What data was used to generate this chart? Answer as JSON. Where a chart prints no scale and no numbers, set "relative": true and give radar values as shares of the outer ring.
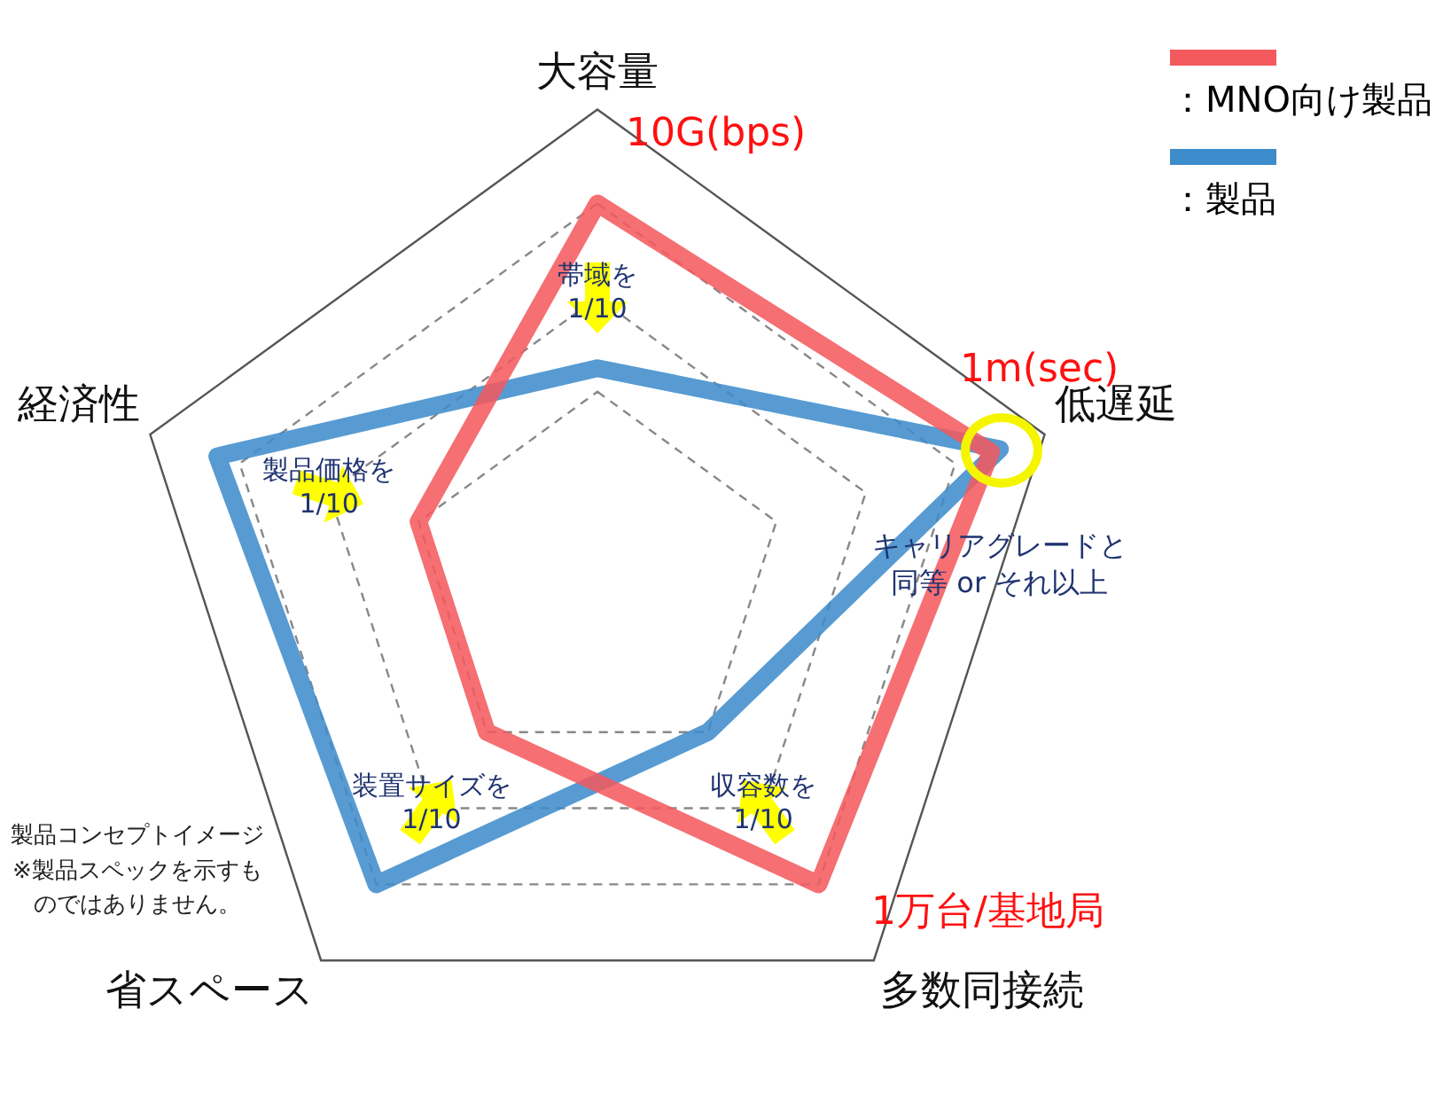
{
  "chart_data": {
    "type": "radar",
    "relative": true,
    "categories": [
      "大容量",
      "低遅延",
      "多数同接続",
      "省スペース",
      "経済性"
    ],
    "series": [
      {
        "name": "：MNO向け製品",
        "color": "#f4595e",
        "values": [
          0.8,
          0.88,
          0.8,
          0.4,
          0.4
        ]
      },
      {
        "name": "：製品",
        "color": "#3d8ccb",
        "values": [
          0.45,
          0.9,
          0.4,
          0.8,
          0.85
        ]
      }
    ],
    "legend": "top right",
    "annotations": [
      {
        "text": "10G(bps)",
        "x": "大容量"
      },
      {
        "text": "1m(sec)",
        "x": "低遅延"
      },
      {
        "text": "1万台/基地局",
        "x": "多数同接続"
      },
      {
        "text": "帯域を1/10",
        "x": "大容量"
      },
      {
        "text": "製品価格を1/10",
        "x": "経済性"
      },
      {
        "text": "装置サイズを1/10",
        "x": "省スペース"
      },
      {
        "text": "収容数を1/10",
        "x": "多数同接続"
      },
      {
        "text": "キャリアグレードと同等 or それ以上",
        "x": "低遅延"
      },
      "製品コンセプトイメージ※製品スペックを示すものではありません。"
    ]
  }
}
